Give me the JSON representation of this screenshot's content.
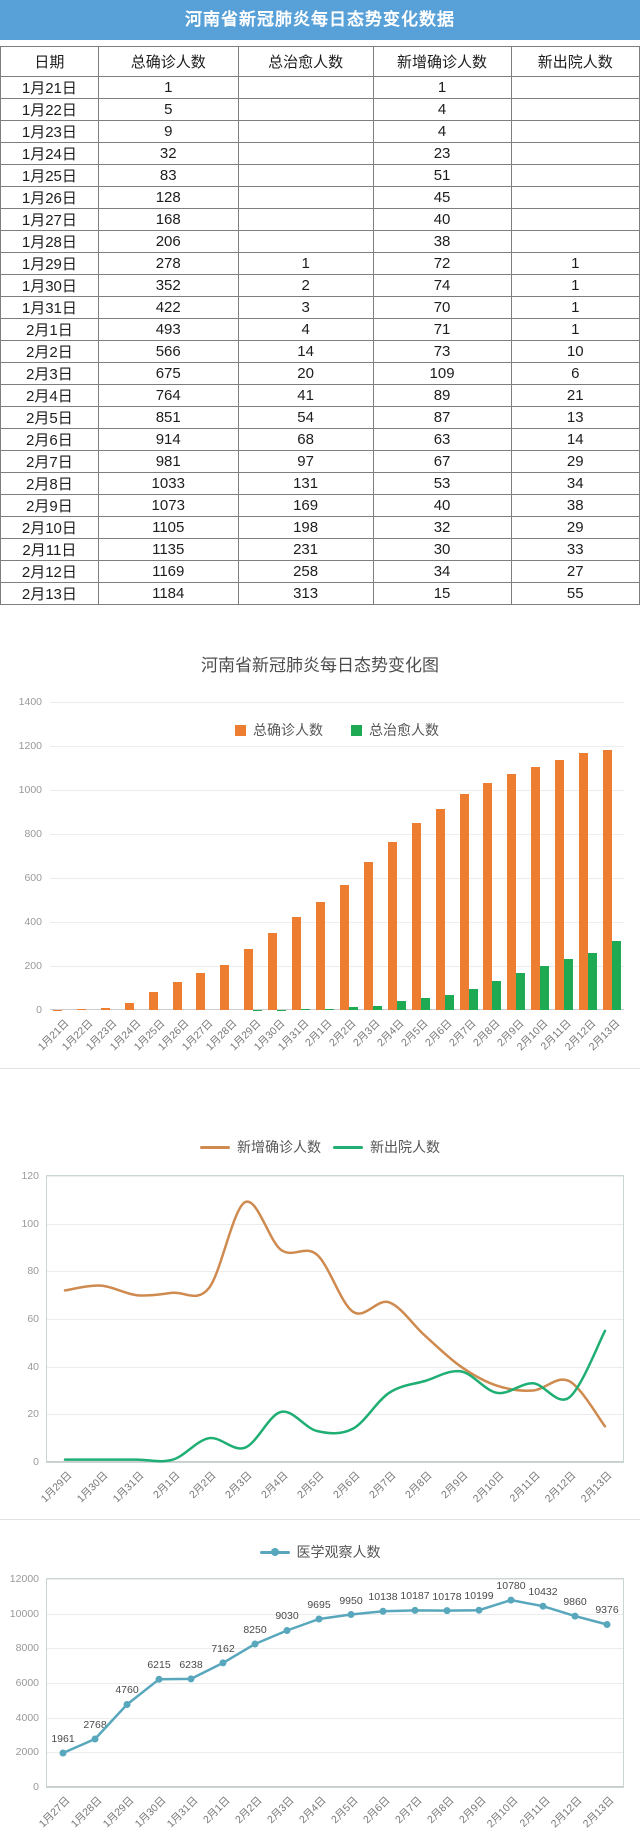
{
  "header": {
    "title": "河南省新冠肺炎每日态势变化数据"
  },
  "table": {
    "headers": [
      "日期",
      "总确诊人数",
      "总治愈人数",
      "新增确诊人数",
      "新出院人数"
    ],
    "rows": [
      [
        "1月21日",
        "1",
        "",
        "1",
        ""
      ],
      [
        "1月22日",
        "5",
        "",
        "4",
        ""
      ],
      [
        "1月23日",
        "9",
        "",
        "4",
        ""
      ],
      [
        "1月24日",
        "32",
        "",
        "23",
        ""
      ],
      [
        "1月25日",
        "83",
        "",
        "51",
        ""
      ],
      [
        "1月26日",
        "128",
        "",
        "45",
        ""
      ],
      [
        "1月27日",
        "168",
        "",
        "40",
        ""
      ],
      [
        "1月28日",
        "206",
        "",
        "38",
        ""
      ],
      [
        "1月29日",
        "278",
        "1",
        "72",
        "1"
      ],
      [
        "1月30日",
        "352",
        "2",
        "74",
        "1"
      ],
      [
        "1月31日",
        "422",
        "3",
        "70",
        "1"
      ],
      [
        "2月1日",
        "493",
        "4",
        "71",
        "1"
      ],
      [
        "2月2日",
        "566",
        "14",
        "73",
        "10"
      ],
      [
        "2月3日",
        "675",
        "20",
        "109",
        "6"
      ],
      [
        "2月4日",
        "764",
        "41",
        "89",
        "21"
      ],
      [
        "2月5日",
        "851",
        "54",
        "87",
        "13"
      ],
      [
        "2月6日",
        "914",
        "68",
        "63",
        "14"
      ],
      [
        "2月7日",
        "981",
        "97",
        "67",
        "29"
      ],
      [
        "2月8日",
        "1033",
        "131",
        "53",
        "34"
      ],
      [
        "2月9日",
        "1073",
        "169",
        "40",
        "38"
      ],
      [
        "2月10日",
        "1105",
        "198",
        "32",
        "29"
      ],
      [
        "2月11日",
        "1135",
        "231",
        "30",
        "33"
      ],
      [
        "2月12日",
        "1169",
        "258",
        "34",
        "27"
      ],
      [
        "2月13日",
        "1184",
        "313",
        "15",
        "55"
      ]
    ]
  },
  "chart_data": [
    {
      "type": "bar",
      "title": "河南省新冠肺炎每日态势变化图",
      "categories": [
        "1月21日",
        "1月22日",
        "1月23日",
        "1月24日",
        "1月25日",
        "1月26日",
        "1月27日",
        "1月28日",
        "1月29日",
        "1月30日",
        "1月31日",
        "2月1日",
        "2月2日",
        "2月3日",
        "2月4日",
        "2月5日",
        "2月6日",
        "2月7日",
        "2月8日",
        "2月9日",
        "2月10日",
        "2月11日",
        "2月12日",
        "2月13日"
      ],
      "series": [
        {
          "name": "总确诊人数",
          "color": "#ED7D31",
          "values": [
            1,
            5,
            9,
            32,
            83,
            128,
            168,
            206,
            278,
            352,
            422,
            493,
            566,
            675,
            764,
            851,
            914,
            981,
            1033,
            1073,
            1105,
            1135,
            1169,
            1184
          ]
        },
        {
          "name": "总治愈人数",
          "color": "#1EA953",
          "values": [
            0,
            0,
            0,
            0,
            0,
            0,
            0,
            0,
            1,
            2,
            3,
            4,
            14,
            20,
            41,
            54,
            68,
            97,
            131,
            169,
            198,
            231,
            258,
            313
          ]
        }
      ],
      "xlabel": "",
      "ylabel": "",
      "ylim": [
        0,
        1400
      ],
      "yticks": [
        0,
        200,
        400,
        600,
        800,
        1000,
        1200,
        1400
      ],
      "grid": true,
      "legend_position": "top-center-inside"
    },
    {
      "type": "line",
      "title": "",
      "categories": [
        "1月29日",
        "1月30日",
        "1月31日",
        "2月1日",
        "2月2日",
        "2月3日",
        "2月4日",
        "2月5日",
        "2月6日",
        "2月7日",
        "2月8日",
        "2月9日",
        "2月10日",
        "2月11日",
        "2月12日",
        "2月13日"
      ],
      "series": [
        {
          "name": "新增确诊人数",
          "color": "#CE8A4F",
          "values": [
            72,
            74,
            70,
            71,
            73,
            109,
            89,
            87,
            63,
            67,
            53,
            40,
            32,
            30,
            34,
            15
          ]
        },
        {
          "name": "新出院人数",
          "color": "#1FAE73",
          "values": [
            1,
            1,
            1,
            1,
            10,
            6,
            21,
            13,
            14,
            29,
            34,
            38,
            29,
            33,
            27,
            55
          ]
        }
      ],
      "xlabel": "",
      "ylabel": "",
      "ylim": [
        0,
        120
      ],
      "yticks": [
        0,
        20,
        40,
        60,
        80,
        100,
        120
      ],
      "grid": true,
      "legend_position": "top-center"
    },
    {
      "type": "line",
      "title": "",
      "categories": [
        "1月27日",
        "1月28日",
        "1月29日",
        "1月30日",
        "1月31日",
        "2月1日",
        "2月2日",
        "2月3日",
        "2月4日",
        "2月5日",
        "2月6日",
        "2月7日",
        "2月8日",
        "2月9日",
        "2月10日",
        "2月11日",
        "2月12日",
        "2月13日"
      ],
      "series": [
        {
          "name": "医学观察人数",
          "color": "#58A7BC",
          "values": [
            1961,
            2768,
            4760,
            6215,
            6238,
            7162,
            8250,
            9030,
            9695,
            9950,
            10138,
            10187,
            10178,
            10199,
            10780,
            10432,
            9860,
            9376
          ]
        }
      ],
      "xlabel": "",
      "ylabel": "",
      "ylim": [
        0,
        12000
      ],
      "yticks": [
        0,
        2000,
        4000,
        6000,
        8000,
        10000,
        12000
      ],
      "grid": true,
      "legend_position": "top-center"
    }
  ]
}
